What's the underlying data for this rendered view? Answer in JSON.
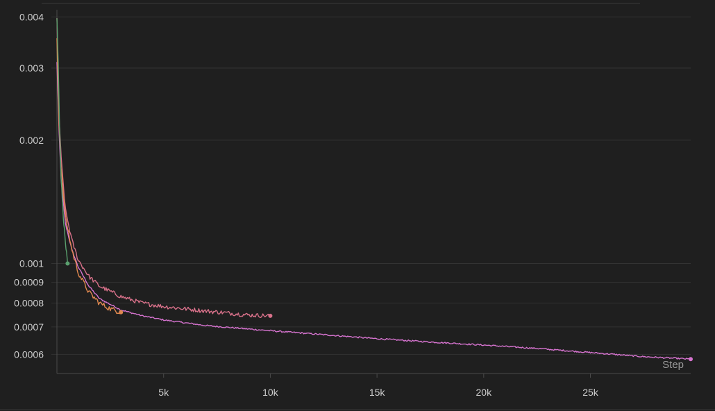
{
  "chart_data": {
    "type": "line",
    "xlabel": "Step",
    "ylabel": "",
    "title": "",
    "y_scale": "log",
    "xlim": [
      0,
      29700
    ],
    "ylim": [
      0.00056,
      0.0041
    ],
    "x_ticks": [
      5000,
      10000,
      15000,
      20000,
      25000
    ],
    "x_tick_labels": [
      "5k",
      "10k",
      "15k",
      "20k",
      "25k"
    ],
    "y_ticks": [
      0.0006,
      0.0007,
      0.0008,
      0.0009,
      0.001,
      0.002,
      0.003,
      0.004
    ],
    "y_tick_labels": [
      "0.0006",
      "0.0007",
      "0.0008",
      "0.0009",
      "0.001",
      "0.002",
      "0.003",
      "0.004"
    ],
    "grid": true,
    "series": [
      {
        "color": "#d774d0",
        "noise": 0.004,
        "points": [
          [
            0,
            0.0031
          ],
          [
            100,
            0.0021
          ],
          [
            200,
            0.0016
          ],
          [
            400,
            0.00125
          ],
          [
            700,
            0.00108
          ],
          [
            1000,
            0.00098
          ],
          [
            1500,
            0.00088
          ],
          [
            2000,
            0.00082
          ],
          [
            3000,
            0.00077
          ],
          [
            4000,
            0.000745
          ],
          [
            5000,
            0.000728
          ],
          [
            7000,
            0.000705
          ],
          [
            10000,
            0.000685
          ],
          [
            12500,
            0.00067
          ],
          [
            15000,
            0.000655
          ],
          [
            17500,
            0.000643
          ],
          [
            20000,
            0.000632
          ],
          [
            22500,
            0.00062
          ],
          [
            25000,
            0.000606
          ],
          [
            27500,
            0.000592
          ],
          [
            29700,
            0.000584
          ]
        ]
      },
      {
        "color": "#d8718a",
        "noise": 0.012,
        "points": [
          [
            0,
            0.004
          ],
          [
            100,
            0.0023
          ],
          [
            200,
            0.0018
          ],
          [
            400,
            0.00135
          ],
          [
            700,
            0.00114
          ],
          [
            1000,
            0.00102
          ],
          [
            1500,
            0.00093
          ],
          [
            2000,
            0.00088
          ],
          [
            3000,
            0.00083
          ],
          [
            4000,
            0.0008
          ],
          [
            5000,
            0.000785
          ],
          [
            6000,
            0.000775
          ],
          [
            7000,
            0.000765
          ],
          [
            8000,
            0.000757
          ],
          [
            9000,
            0.000748
          ],
          [
            10000,
            0.000745
          ]
        ]
      },
      {
        "color": "#e0884f",
        "noise": 0.015,
        "points": [
          [
            0,
            0.0035
          ],
          [
            100,
            0.0022
          ],
          [
            200,
            0.0017
          ],
          [
            400,
            0.0013
          ],
          [
            700,
            0.00108
          ],
          [
            1000,
            0.00095
          ],
          [
            1500,
            0.00085
          ],
          [
            2000,
            0.0008
          ],
          [
            2500,
            0.000775
          ],
          [
            3000,
            0.00076
          ]
        ]
      },
      {
        "color": "#5aa06e",
        "noise": 0.01,
        "points": [
          [
            0,
            0.004
          ],
          [
            60,
            0.0031
          ],
          [
            120,
            0.0022
          ],
          [
            200,
            0.0016
          ],
          [
            300,
            0.0013
          ],
          [
            400,
            0.00112
          ],
          [
            500,
            0.001
          ]
        ]
      }
    ]
  }
}
